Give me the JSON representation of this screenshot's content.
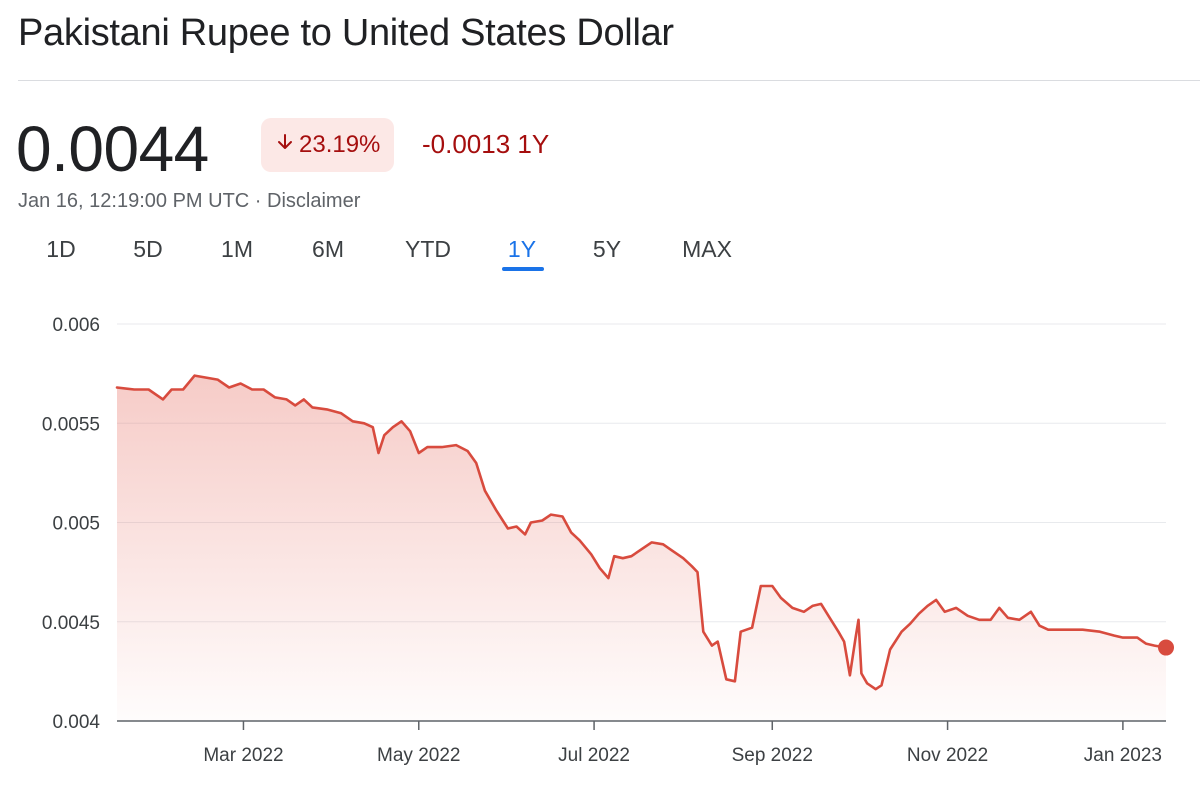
{
  "title": "Pakistani Rupee to United States Dollar",
  "price": "0.0044",
  "badge": {
    "arrow": "arrow-down-icon",
    "percent": "23.19%"
  },
  "change": "-0.0013 1Y",
  "meta": {
    "timestamp": "Jan 16, 12:19:00 PM UTC",
    "separator": " · ",
    "disclaimer": "Disclaimer"
  },
  "tabs": [
    "1D",
    "5D",
    "1M",
    "6M",
    "YTD",
    "1Y",
    "5Y",
    "MAX"
  ],
  "active_tab": "1Y",
  "colors": {
    "line": "#d84b3e",
    "fill_top": "#e8776c",
    "negative": "#a50e0e",
    "negative_bg": "#fce8e6",
    "accent": "#1a73e8",
    "grid": "#e8eaed"
  },
  "chart_data": {
    "type": "area",
    "y_ticks": [
      "0.006",
      "0.0055",
      "0.005",
      "0.0045",
      "0.004"
    ],
    "y_tick_values": [
      0.006,
      0.0055,
      0.005,
      0.0045,
      0.004
    ],
    "x_ticks": [
      "Mar 2022",
      "May 2022",
      "Jul 2022",
      "Sep 2022",
      "Nov 2022",
      "Jan 2023"
    ],
    "x_tick_dates": [
      "2022-03-01",
      "2022-05-01",
      "2022-07-01",
      "2022-09-01",
      "2022-11-01",
      "2023-01-01"
    ],
    "xlim": [
      "2022-01-16",
      "2023-01-16"
    ],
    "ylim": [
      0.004,
      0.006
    ],
    "grid": true,
    "series": [
      {
        "points": [
          [
            "2022-01-16",
            0.00568
          ],
          [
            "2022-01-22",
            0.00567
          ],
          [
            "2022-01-27",
            0.00567
          ],
          [
            "2022-02-01",
            0.00562
          ],
          [
            "2022-02-04",
            0.00567
          ],
          [
            "2022-02-08",
            0.00567
          ],
          [
            "2022-02-12",
            0.00574
          ],
          [
            "2022-02-16",
            0.00573
          ],
          [
            "2022-02-20",
            0.00572
          ],
          [
            "2022-02-24",
            0.00568
          ],
          [
            "2022-02-28",
            0.0057
          ],
          [
            "2022-03-04",
            0.00567
          ],
          [
            "2022-03-08",
            0.00567
          ],
          [
            "2022-03-12",
            0.00563
          ],
          [
            "2022-03-16",
            0.00562
          ],
          [
            "2022-03-19",
            0.00559
          ],
          [
            "2022-03-22",
            0.00562
          ],
          [
            "2022-03-25",
            0.00558
          ],
          [
            "2022-03-30",
            0.00557
          ],
          [
            "2022-04-04",
            0.00555
          ],
          [
            "2022-04-08",
            0.00551
          ],
          [
            "2022-04-12",
            0.0055
          ],
          [
            "2022-04-15",
            0.00548
          ],
          [
            "2022-04-17",
            0.00535
          ],
          [
            "2022-04-19",
            0.00544
          ],
          [
            "2022-04-22",
            0.00548
          ],
          [
            "2022-04-25",
            0.00551
          ],
          [
            "2022-04-28",
            0.00546
          ],
          [
            "2022-05-01",
            0.00535
          ],
          [
            "2022-05-04",
            0.00538
          ],
          [
            "2022-05-09",
            0.00538
          ],
          [
            "2022-05-14",
            0.00539
          ],
          [
            "2022-05-18",
            0.00536
          ],
          [
            "2022-05-21",
            0.0053
          ],
          [
            "2022-05-24",
            0.00516
          ],
          [
            "2022-05-28",
            0.00506
          ],
          [
            "2022-06-01",
            0.00497
          ],
          [
            "2022-06-04",
            0.00498
          ],
          [
            "2022-06-07",
            0.00494
          ],
          [
            "2022-06-09",
            0.005
          ],
          [
            "2022-06-13",
            0.00501
          ],
          [
            "2022-06-16",
            0.00504
          ],
          [
            "2022-06-20",
            0.00503
          ],
          [
            "2022-06-23",
            0.00495
          ],
          [
            "2022-06-26",
            0.00491
          ],
          [
            "2022-06-30",
            0.00484
          ],
          [
            "2022-07-03",
            0.00477
          ],
          [
            "2022-07-06",
            0.00472
          ],
          [
            "2022-07-08",
            0.00483
          ],
          [
            "2022-07-11",
            0.00482
          ],
          [
            "2022-07-14",
            0.00483
          ],
          [
            "2022-07-18",
            0.00487
          ],
          [
            "2022-07-21",
            0.0049
          ],
          [
            "2022-07-25",
            0.00489
          ],
          [
            "2022-07-28",
            0.00486
          ],
          [
            "2022-08-01",
            0.00482
          ],
          [
            "2022-08-04",
            0.00478
          ],
          [
            "2022-08-06",
            0.00475
          ],
          [
            "2022-08-08",
            0.00445
          ],
          [
            "2022-08-11",
            0.00438
          ],
          [
            "2022-08-13",
            0.0044
          ],
          [
            "2022-08-16",
            0.00421
          ],
          [
            "2022-08-19",
            0.0042
          ],
          [
            "2022-08-21",
            0.00445
          ],
          [
            "2022-08-25",
            0.00447
          ],
          [
            "2022-08-28",
            0.00468
          ],
          [
            "2022-09-01",
            0.00468
          ],
          [
            "2022-09-04",
            0.00462
          ],
          [
            "2022-09-08",
            0.00457
          ],
          [
            "2022-09-12",
            0.00455
          ],
          [
            "2022-09-15",
            0.00458
          ],
          [
            "2022-09-18",
            0.00459
          ],
          [
            "2022-09-21",
            0.00452
          ],
          [
            "2022-09-24",
            0.00445
          ],
          [
            "2022-09-26",
            0.0044
          ],
          [
            "2022-09-28",
            0.00423
          ],
          [
            "2022-09-30",
            0.00442
          ],
          [
            "2022-10-01",
            0.00451
          ],
          [
            "2022-10-02",
            0.00424
          ],
          [
            "2022-10-04",
            0.00419
          ],
          [
            "2022-10-07",
            0.00416
          ],
          [
            "2022-10-09",
            0.00418
          ],
          [
            "2022-10-12",
            0.00436
          ],
          [
            "2022-10-16",
            0.00445
          ],
          [
            "2022-10-19",
            0.00449
          ],
          [
            "2022-10-22",
            0.00454
          ],
          [
            "2022-10-25",
            0.00458
          ],
          [
            "2022-10-28",
            0.00461
          ],
          [
            "2022-10-31",
            0.00455
          ],
          [
            "2022-11-04",
            0.00457
          ],
          [
            "2022-11-08",
            0.00453
          ],
          [
            "2022-11-12",
            0.00451
          ],
          [
            "2022-11-16",
            0.00451
          ],
          [
            "2022-11-19",
            0.00457
          ],
          [
            "2022-11-22",
            0.00452
          ],
          [
            "2022-11-26",
            0.00451
          ],
          [
            "2022-11-30",
            0.00455
          ],
          [
            "2022-12-03",
            0.00448
          ],
          [
            "2022-12-06",
            0.00446
          ],
          [
            "2022-12-12",
            0.00446
          ],
          [
            "2022-12-18",
            0.00446
          ],
          [
            "2022-12-24",
            0.00445
          ],
          [
            "2022-12-29",
            0.00443
          ],
          [
            "2023-01-01",
            0.00442
          ],
          [
            "2023-01-06",
            0.00442
          ],
          [
            "2023-01-09",
            0.00439
          ],
          [
            "2023-01-12",
            0.00438
          ],
          [
            "2023-01-16",
            0.00437
          ]
        ]
      }
    ]
  }
}
